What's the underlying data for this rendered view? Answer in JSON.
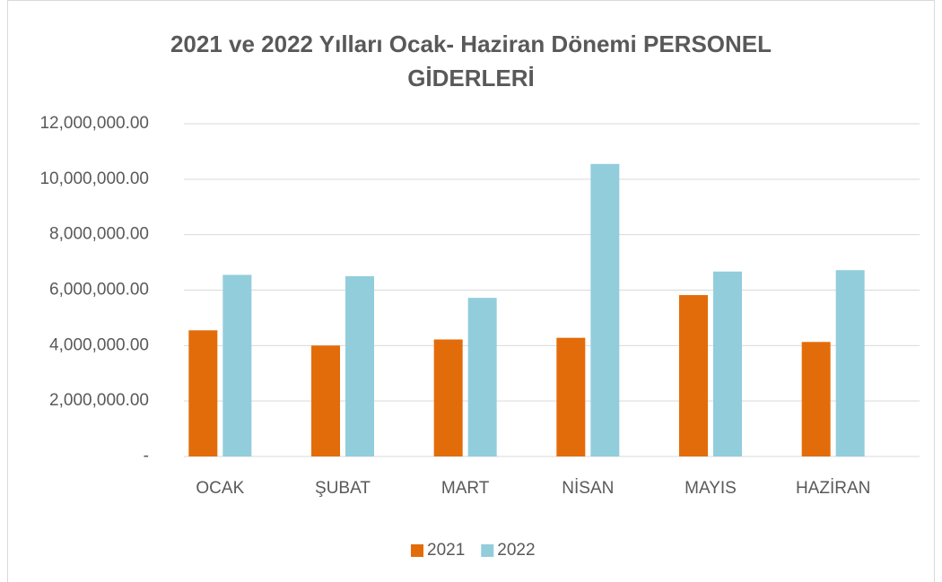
{
  "chart_data": {
    "type": "bar",
    "title": "2021 ve 2022 Yılları Ocak- Haziran Dönemi PERSONEL GİDERLERİ",
    "categories": [
      "OCAK",
      "ŞUBAT",
      "MART",
      "NİSAN",
      "MAYIS",
      "HAZİRAN"
    ],
    "series": [
      {
        "name": "2021",
        "color": "#e36c0a",
        "values": [
          4550000,
          4000000,
          4220000,
          4280000,
          5820000,
          4130000
        ]
      },
      {
        "name": "2022",
        "color": "#92cddc",
        "values": [
          6550000,
          6500000,
          5720000,
          10550000,
          6670000,
          6720000
        ]
      }
    ],
    "ylim": [
      0,
      12000000
    ],
    "yticks": [
      {
        "value": 0,
        "label": "-"
      },
      {
        "value": 2000000,
        "label": "2,000,000.00"
      },
      {
        "value": 4000000,
        "label": "4,000,000.00"
      },
      {
        "value": 6000000,
        "label": "6,000,000.00"
      },
      {
        "value": 8000000,
        "label": "8,000,000.00"
      },
      {
        "value": 10000000,
        "label": "10,000,000.00"
      },
      {
        "value": 12000000,
        "label": "12,000,000.00"
      }
    ],
    "grid": true,
    "legend": "bottom"
  }
}
